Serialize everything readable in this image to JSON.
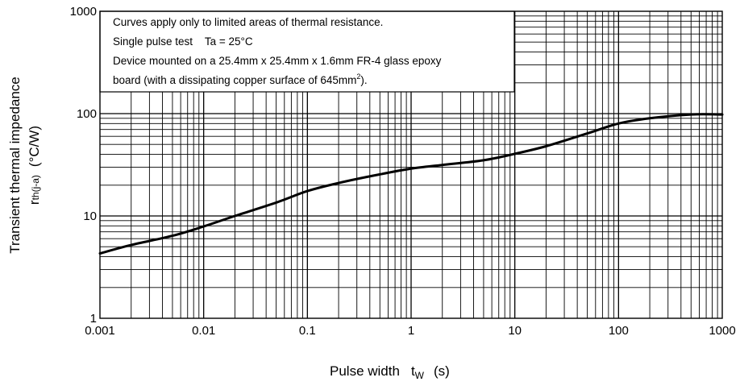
{
  "chart_data": {
    "type": "line",
    "x_scale": "log",
    "y_scale": "log",
    "xlim": [
      0.001,
      1000
    ],
    "ylim": [
      1,
      1000
    ],
    "grid": true,
    "x_ticks": [
      "0.001",
      "0.01",
      "0.1",
      "1",
      "10",
      "100",
      "1000"
    ],
    "y_ticks": [
      "1",
      "10",
      "100",
      "1000"
    ],
    "xlabel": {
      "main": "Pulse width",
      "symbol": "t",
      "subscript": "W",
      "unit": "(s)"
    },
    "ylabel": {
      "line1": "Transient thermal impedance",
      "symbol": "r",
      "subscript": "th(j-a)",
      "unit": "(°C/W)"
    },
    "notes": {
      "line1": "Curves apply only to limited areas of thermal resistance.",
      "line2": "Single pulse test    Ta = 25°C",
      "line3": "Device mounted on a 25.4mm x 25.4mm x 1.6mm FR-4 glass epoxy",
      "line4_pre": "board (with a dissipating copper surface of 645mm",
      "line4_sup": "2",
      "line4_post": ")."
    },
    "series": [
      {
        "color": "#000000",
        "x": [
          0.001,
          0.002,
          0.005,
          0.01,
          0.02,
          0.05,
          0.1,
          0.2,
          0.5,
          1,
          2,
          5,
          10,
          20,
          50,
          100,
          200,
          500,
          1000
        ],
        "y": [
          4.3,
          5.2,
          6.4,
          7.9,
          10.0,
          13.5,
          17.5,
          21.0,
          25.5,
          29.0,
          31.5,
          35.0,
          40.5,
          48.0,
          64.0,
          80.0,
          90.0,
          98.0,
          98.0
        ]
      }
    ]
  }
}
